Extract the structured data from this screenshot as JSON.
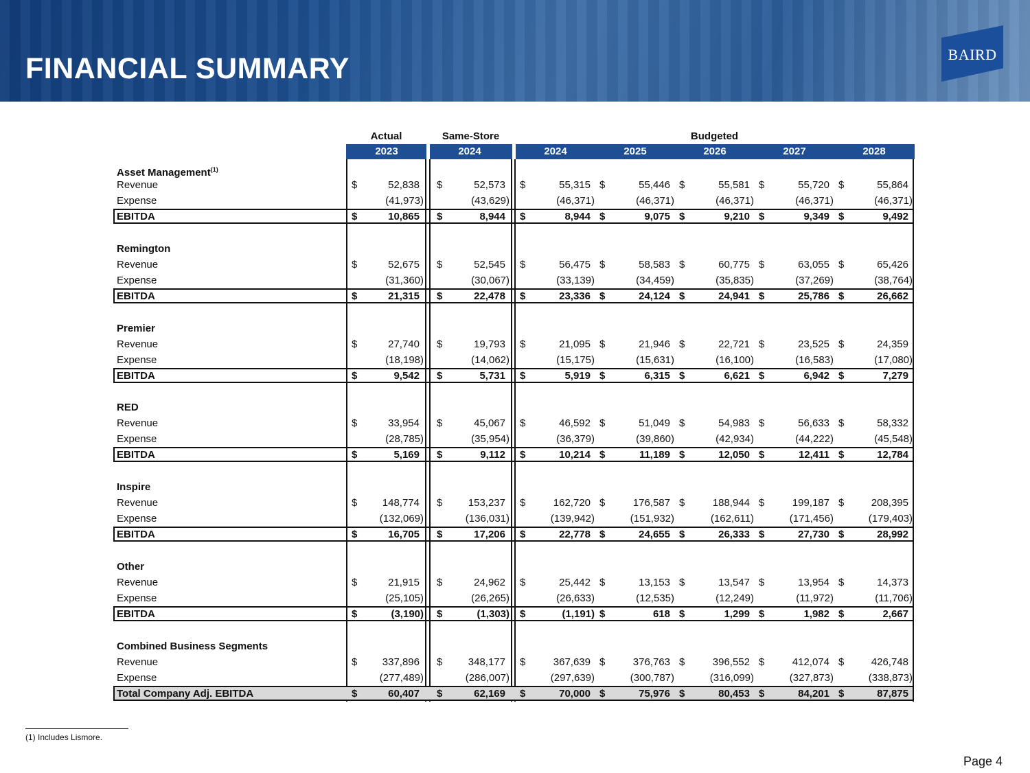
{
  "header": {
    "title": "FINANCIAL SUMMARY",
    "logo_text": "BAIRD"
  },
  "colors": {
    "banner": "#1d4f8f",
    "year_bar": "#1e4e93",
    "total_fill": "#d9d9d9"
  },
  "table": {
    "groups": {
      "actual": "Actual",
      "same_store": "Same-Store",
      "budgeted": "Budgeted"
    },
    "years": [
      "2023",
      "2024",
      "2024",
      "2025",
      "2026",
      "2027",
      "2028"
    ],
    "sections": [
      {
        "title": "Asset Management",
        "superscript": "(1)",
        "rows": [
          {
            "label": "Revenue",
            "values": [
              "52,838",
              "52,573",
              "55,315",
              "55,446",
              "55,581",
              "55,720",
              "55,864"
            ]
          },
          {
            "label": "Expense",
            "values": [
              "(41,973)",
              "(43,629)",
              "(46,371)",
              "(46,371)",
              "(46,371)",
              "(46,371)",
              "(46,371)"
            ]
          },
          {
            "label": "EBITDA",
            "values": [
              "10,865",
              "8,944",
              "8,944",
              "9,075",
              "9,210",
              "9,349",
              "9,492"
            ]
          }
        ]
      },
      {
        "title": "Remington",
        "rows": [
          {
            "label": "Revenue",
            "values": [
              "52,675",
              "52,545",
              "56,475",
              "58,583",
              "60,775",
              "63,055",
              "65,426"
            ]
          },
          {
            "label": "Expense",
            "values": [
              "(31,360)",
              "(30,067)",
              "(33,139)",
              "(34,459)",
              "(35,835)",
              "(37,269)",
              "(38,764)"
            ]
          },
          {
            "label": "EBITDA",
            "values": [
              "21,315",
              "22,478",
              "23,336",
              "24,124",
              "24,941",
              "25,786",
              "26,662"
            ]
          }
        ]
      },
      {
        "title": "Premier",
        "rows": [
          {
            "label": "Revenue",
            "values": [
              "27,740",
              "19,793",
              "21,095",
              "21,946",
              "22,721",
              "23,525",
              "24,359"
            ]
          },
          {
            "label": "Expense",
            "values": [
              "(18,198)",
              "(14,062)",
              "(15,175)",
              "(15,631)",
              "(16,100)",
              "(16,583)",
              "(17,080)"
            ]
          },
          {
            "label": "EBITDA",
            "values": [
              "9,542",
              "5,731",
              "5,919",
              "6,315",
              "6,621",
              "6,942",
              "7,279"
            ]
          }
        ]
      },
      {
        "title": "RED",
        "rows": [
          {
            "label": "Revenue",
            "values": [
              "33,954",
              "45,067",
              "46,592",
              "51,049",
              "54,983",
              "56,633",
              "58,332"
            ]
          },
          {
            "label": "Expense",
            "values": [
              "(28,785)",
              "(35,954)",
              "(36,379)",
              "(39,860)",
              "(42,934)",
              "(44,222)",
              "(45,548)"
            ]
          },
          {
            "label": "EBITDA",
            "values": [
              "5,169",
              "9,112",
              "10,214",
              "11,189",
              "12,050",
              "12,411",
              "12,784"
            ]
          }
        ]
      },
      {
        "title": "Inspire",
        "rows": [
          {
            "label": "Revenue",
            "values": [
              "148,774",
              "153,237",
              "162,720",
              "176,587",
              "188,944",
              "199,187",
              "208,395"
            ]
          },
          {
            "label": "Expense",
            "values": [
              "(132,069)",
              "(136,031)",
              "(139,942)",
              "(151,932)",
              "(162,611)",
              "(171,456)",
              "(179,403)"
            ]
          },
          {
            "label": "EBITDA",
            "values": [
              "16,705",
              "17,206",
              "22,778",
              "24,655",
              "26,333",
              "27,730",
              "28,992"
            ]
          }
        ]
      },
      {
        "title": "Other",
        "rows": [
          {
            "label": "Revenue",
            "values": [
              "21,915",
              "24,962",
              "25,442",
              "13,153",
              "13,547",
              "13,954",
              "14,373"
            ]
          },
          {
            "label": "Expense",
            "values": [
              "(25,105)",
              "(26,265)",
              "(26,633)",
              "(12,535)",
              "(12,249)",
              "(11,972)",
              "(11,706)"
            ]
          },
          {
            "label": "EBITDA",
            "values": [
              "(3,190)",
              "(1,303)",
              "(1,191)",
              "618",
              "1,299",
              "1,982",
              "2,667"
            ]
          }
        ]
      },
      {
        "title": "Combined Business Segments",
        "rows": [
          {
            "label": "Revenue",
            "values": [
              "337,896",
              "348,177",
              "367,639",
              "376,763",
              "396,552",
              "412,074",
              "426,748"
            ]
          },
          {
            "label": "Expense",
            "values": [
              "(277,489)",
              "(286,007)",
              "(297,639)",
              "(300,787)",
              "(316,099)",
              "(327,873)",
              "(338,873)"
            ]
          },
          {
            "label": "Total Company Adj. EBITDA",
            "values": [
              "60,407",
              "62,169",
              "70,000",
              "75,976",
              "80,453",
              "84,201",
              "87,875"
            ]
          }
        ]
      }
    ],
    "currency_symbol": "$"
  },
  "footnote": "(1) Includes Lismore.",
  "page_label": "Page 4"
}
